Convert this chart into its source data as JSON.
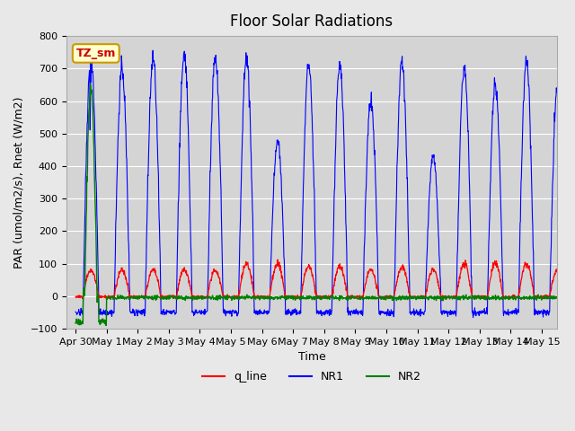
{
  "title": "Floor Solar Radiations",
  "xlabel": "Time",
  "ylabel": "PAR (umol/m2/s), Rnet (W/m2)",
  "ylim": [
    -100,
    800
  ],
  "xlim_days": [
    0,
    15.5
  ],
  "xtick_labels": [
    "Apr 30",
    "May 1",
    "May 2",
    "May 3",
    "May 4",
    "May 5",
    "May 6",
    "May 7",
    "May 8",
    "May 9",
    "May 10",
    "May 11",
    "May 12",
    "May 13",
    "May 14",
    "May 15"
  ],
  "xtick_positions": [
    0,
    1,
    2,
    3,
    4,
    5,
    6,
    7,
    8,
    9,
    10,
    11,
    12,
    13,
    14,
    15
  ],
  "bg_color": "#e8e8e8",
  "plot_bg_color": "#d8d8d8",
  "grid_color": "#ffffff",
  "line_colors": {
    "q_line": "red",
    "NR1": "blue",
    "NR2": "green"
  },
  "annotation_text": "TZ_sm",
  "annotation_color": "#cc0000",
  "annotation_bg": "#ffffcc",
  "annotation_border": "#cc9900"
}
